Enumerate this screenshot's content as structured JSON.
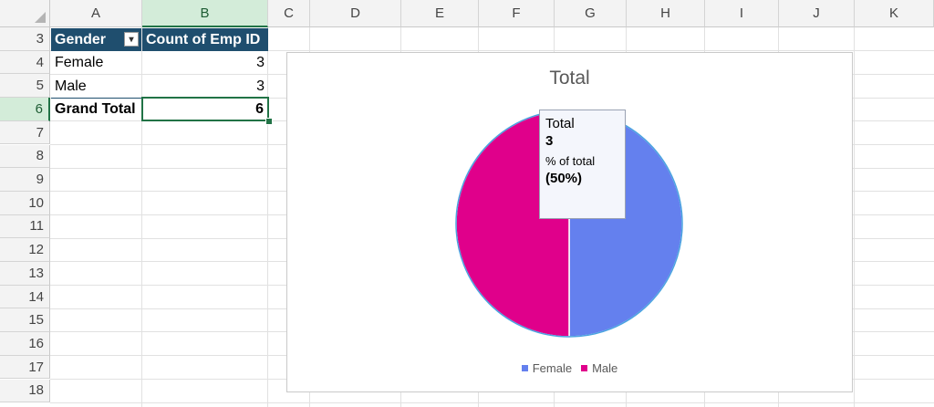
{
  "columns": [
    "A",
    "B",
    "C",
    "D",
    "E",
    "F",
    "G",
    "H",
    "I",
    "J",
    "K"
  ],
  "rows": [
    "3",
    "4",
    "5",
    "6",
    "7",
    "8",
    "9",
    "10",
    "11",
    "12",
    "13",
    "14",
    "15",
    "16",
    "17",
    "18"
  ],
  "pivot": {
    "header": {
      "gender": "Gender",
      "count": "Count of Emp ID"
    },
    "rows": [
      {
        "label": "Female",
        "value": "3"
      },
      {
        "label": "Male",
        "value": "3"
      }
    ],
    "total": {
      "label": "Grand Total",
      "value": "6"
    }
  },
  "chart_data": {
    "type": "pie",
    "title": "Total",
    "categories": [
      "Female",
      "Male"
    ],
    "values": [
      3,
      3
    ],
    "colors": [
      "#6480ee",
      "#e0008b"
    ],
    "legend_position": "bottom"
  },
  "tooltip": {
    "series": "Total",
    "value": "3",
    "pct_label": "% of total",
    "pct_value": "(50%)"
  }
}
